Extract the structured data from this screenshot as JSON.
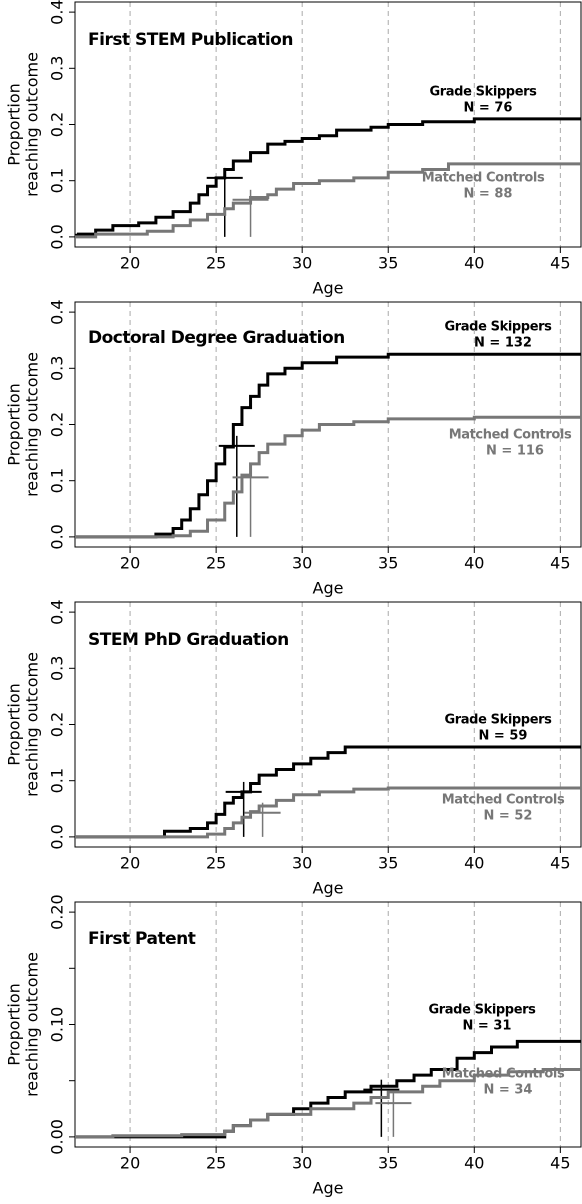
{
  "chart_data": [
    {
      "type": "step",
      "title": "First STEM Publication",
      "x_label": "Age",
      "y_label": [
        "Proportion",
        "reaching outcome"
      ],
      "xlim": [
        16.8,
        46.2
      ],
      "xticks": [
        20,
        25,
        30,
        35,
        40,
        45
      ],
      "ylim": [
        -0.018,
        0.418
      ],
      "yticks": [
        {
          "value": 0,
          "label": "0.0"
        },
        {
          "value": 0.1,
          "label": "0.1"
        },
        {
          "value": 0.2,
          "label": "0.2"
        },
        {
          "value": 0.3,
          "label": "0.3"
        },
        {
          "value": 0.4,
          "label": "0.4"
        }
      ],
      "grid": true,
      "series": [
        {
          "name": "Grade Skippers",
          "n_label": "N = 76",
          "color": "#000000",
          "x": [
            16.8,
            17,
            18,
            19,
            20.5,
            21.5,
            22.5,
            23.5,
            24,
            24.5,
            25,
            25.5,
            26,
            27,
            28,
            29,
            30,
            31,
            32,
            34,
            35,
            37,
            40,
            46.2
          ],
          "values": [
            0.003,
            0.005,
            0.012,
            0.02,
            0.025,
            0.035,
            0.045,
            0.06,
            0.075,
            0.09,
            0.105,
            0.12,
            0.135,
            0.15,
            0.165,
            0.17,
            0.175,
            0.18,
            0.19,
            0.195,
            0.2,
            0.205,
            0.21,
            0.21
          ],
          "median_x": 25.5,
          "median_y": 0.105
        },
        {
          "name": "Matched Controls",
          "n_label": "N = 88",
          "color": "#777777",
          "x": [
            16.8,
            18,
            21,
            22.5,
            23.5,
            24.5,
            25.5,
            26,
            27,
            28,
            28.5,
            29.5,
            31,
            33,
            35,
            37,
            38.5,
            46.2
          ],
          "values": [
            0,
            0.005,
            0.01,
            0.02,
            0.03,
            0.04,
            0.05,
            0.06,
            0.07,
            0.075,
            0.085,
            0.095,
            0.1,
            0.105,
            0.115,
            0.12,
            0.13,
            0.13
          ],
          "median_x": 27,
          "median_y": 0.066
        }
      ]
    },
    {
      "type": "step",
      "title": "Doctoral Degree Graduation",
      "x_label": "Age",
      "y_label": [
        "Proportion",
        "reaching outcome"
      ],
      "xlim": [
        16.8,
        46.2
      ],
      "xticks": [
        20,
        25,
        30,
        35,
        40,
        45
      ],
      "ylim": [
        -0.018,
        0.418
      ],
      "yticks": [
        {
          "value": 0,
          "label": "0.0"
        },
        {
          "value": 0.1,
          "label": "0.1"
        },
        {
          "value": 0.2,
          "label": "0.2"
        },
        {
          "value": 0.3,
          "label": "0.3"
        },
        {
          "value": 0.4,
          "label": "0.4"
        }
      ],
      "grid": true,
      "series": [
        {
          "name": "Grade Skippers",
          "n_label": "N = 132",
          "color": "#000000",
          "x": [
            16.8,
            21.5,
            22.5,
            23,
            23.5,
            24,
            24.5,
            25,
            25.5,
            26,
            26.5,
            27,
            27.5,
            28,
            29,
            30,
            32,
            35,
            46.2
          ],
          "values": [
            0,
            0.005,
            0.015,
            0.03,
            0.05,
            0.075,
            0.1,
            0.13,
            0.16,
            0.2,
            0.23,
            0.25,
            0.27,
            0.29,
            0.3,
            0.31,
            0.32,
            0.325,
            0.325
          ],
          "median_x": 26.2,
          "median_y": 0.162
        },
        {
          "name": "Matched Controls",
          "n_label": "N = 116",
          "color": "#777777",
          "x": [
            16.8,
            22.5,
            23.5,
            24.5,
            25.5,
            26,
            26.5,
            27,
            27.5,
            28,
            29,
            30,
            31,
            33,
            35,
            40,
            46.2
          ],
          "values": [
            0,
            0.002,
            0.01,
            0.03,
            0.06,
            0.08,
            0.11,
            0.13,
            0.15,
            0.165,
            0.18,
            0.19,
            0.2,
            0.205,
            0.21,
            0.213,
            0.213
          ],
          "median_x": 27,
          "median_y": 0.106
        }
      ]
    },
    {
      "type": "step",
      "title": "STEM PhD Graduation",
      "x_label": "Age",
      "y_label": [
        "Proportion",
        "reaching outcome"
      ],
      "xlim": [
        16.8,
        46.2
      ],
      "xticks": [
        20,
        25,
        30,
        35,
        40,
        45
      ],
      "ylim": [
        -0.018,
        0.418
      ],
      "yticks": [
        {
          "value": 0,
          "label": "0.0"
        },
        {
          "value": 0.1,
          "label": "0.1"
        },
        {
          "value": 0.2,
          "label": "0.2"
        },
        {
          "value": 0.3,
          "label": "0.3"
        },
        {
          "value": 0.4,
          "label": "0.4"
        }
      ],
      "grid": true,
      "series": [
        {
          "name": "Grade Skippers",
          "n_label": "N = 59",
          "color": "#000000",
          "x": [
            16.8,
            22,
            23.5,
            24.5,
            25,
            25.5,
            26,
            26.5,
            27,
            27.5,
            28.5,
            29.5,
            30.5,
            31.5,
            32.5,
            46.2
          ],
          "values": [
            0,
            0.01,
            0.015,
            0.025,
            0.04,
            0.06,
            0.07,
            0.08,
            0.095,
            0.11,
            0.12,
            0.13,
            0.14,
            0.15,
            0.16,
            0.16
          ],
          "median_x": 26.6,
          "median_y": 0.08
        },
        {
          "name": "Matched Controls",
          "n_label": "N = 52",
          "color": "#777777",
          "x": [
            16.8,
            24.5,
            25.5,
            26,
            26.5,
            27,
            27.5,
            28.5,
            29.5,
            31,
            33,
            35,
            46.2
          ],
          "values": [
            0,
            0.005,
            0.015,
            0.025,
            0.035,
            0.045,
            0.055,
            0.065,
            0.075,
            0.08,
            0.085,
            0.087,
            0.087
          ],
          "median_x": 27.7,
          "median_y": 0.043
        }
      ]
    },
    {
      "type": "step",
      "title": "First Patent",
      "x_label": "Age",
      "y_label": [
        "Proportion",
        "reaching outcome"
      ],
      "xlim": [
        16.8,
        46.2
      ],
      "xticks": [
        20,
        25,
        30,
        35,
        40,
        45
      ],
      "ylim": [
        -0.009,
        0.209
      ],
      "yticks": [
        {
          "value": 0,
          "label": "0.00"
        },
        {
          "value": 0.1,
          "label": "0.10"
        },
        {
          "value": 0.2,
          "label": "0.20"
        }
      ],
      "yminor": [
        0.05,
        0.15
      ],
      "grid": true,
      "series": [
        {
          "name": "Grade Skippers",
          "n_label": "N = 31",
          "color": "#000000",
          "x": [
            16.8,
            25.5,
            26,
            27,
            28,
            29.5,
            30.5,
            31.5,
            32.5,
            34,
            35.5,
            36.5,
            37.5,
            39,
            40,
            41,
            42.5,
            46.2
          ],
          "values": [
            0,
            0.005,
            0.01,
            0.015,
            0.02,
            0.025,
            0.03,
            0.035,
            0.04,
            0.045,
            0.05,
            0.055,
            0.06,
            0.07,
            0.075,
            0.08,
            0.085,
            0.085
          ],
          "median_x": 34.6,
          "median_y": 0.042
        },
        {
          "name": "Matched Controls",
          "n_label": "N = 34",
          "color": "#777777",
          "x": [
            16.8,
            19,
            23,
            25.5,
            26,
            27,
            28,
            30.5,
            33,
            34,
            35,
            37,
            38,
            40,
            42,
            44,
            46.2
          ],
          "values": [
            0,
            0.001,
            0.002,
            0.005,
            0.01,
            0.015,
            0.02,
            0.025,
            0.03,
            0.035,
            0.04,
            0.045,
            0.05,
            0.055,
            0.058,
            0.06,
            0.06
          ],
          "median_x": 35.3,
          "median_y": 0.03
        }
      ]
    }
  ]
}
